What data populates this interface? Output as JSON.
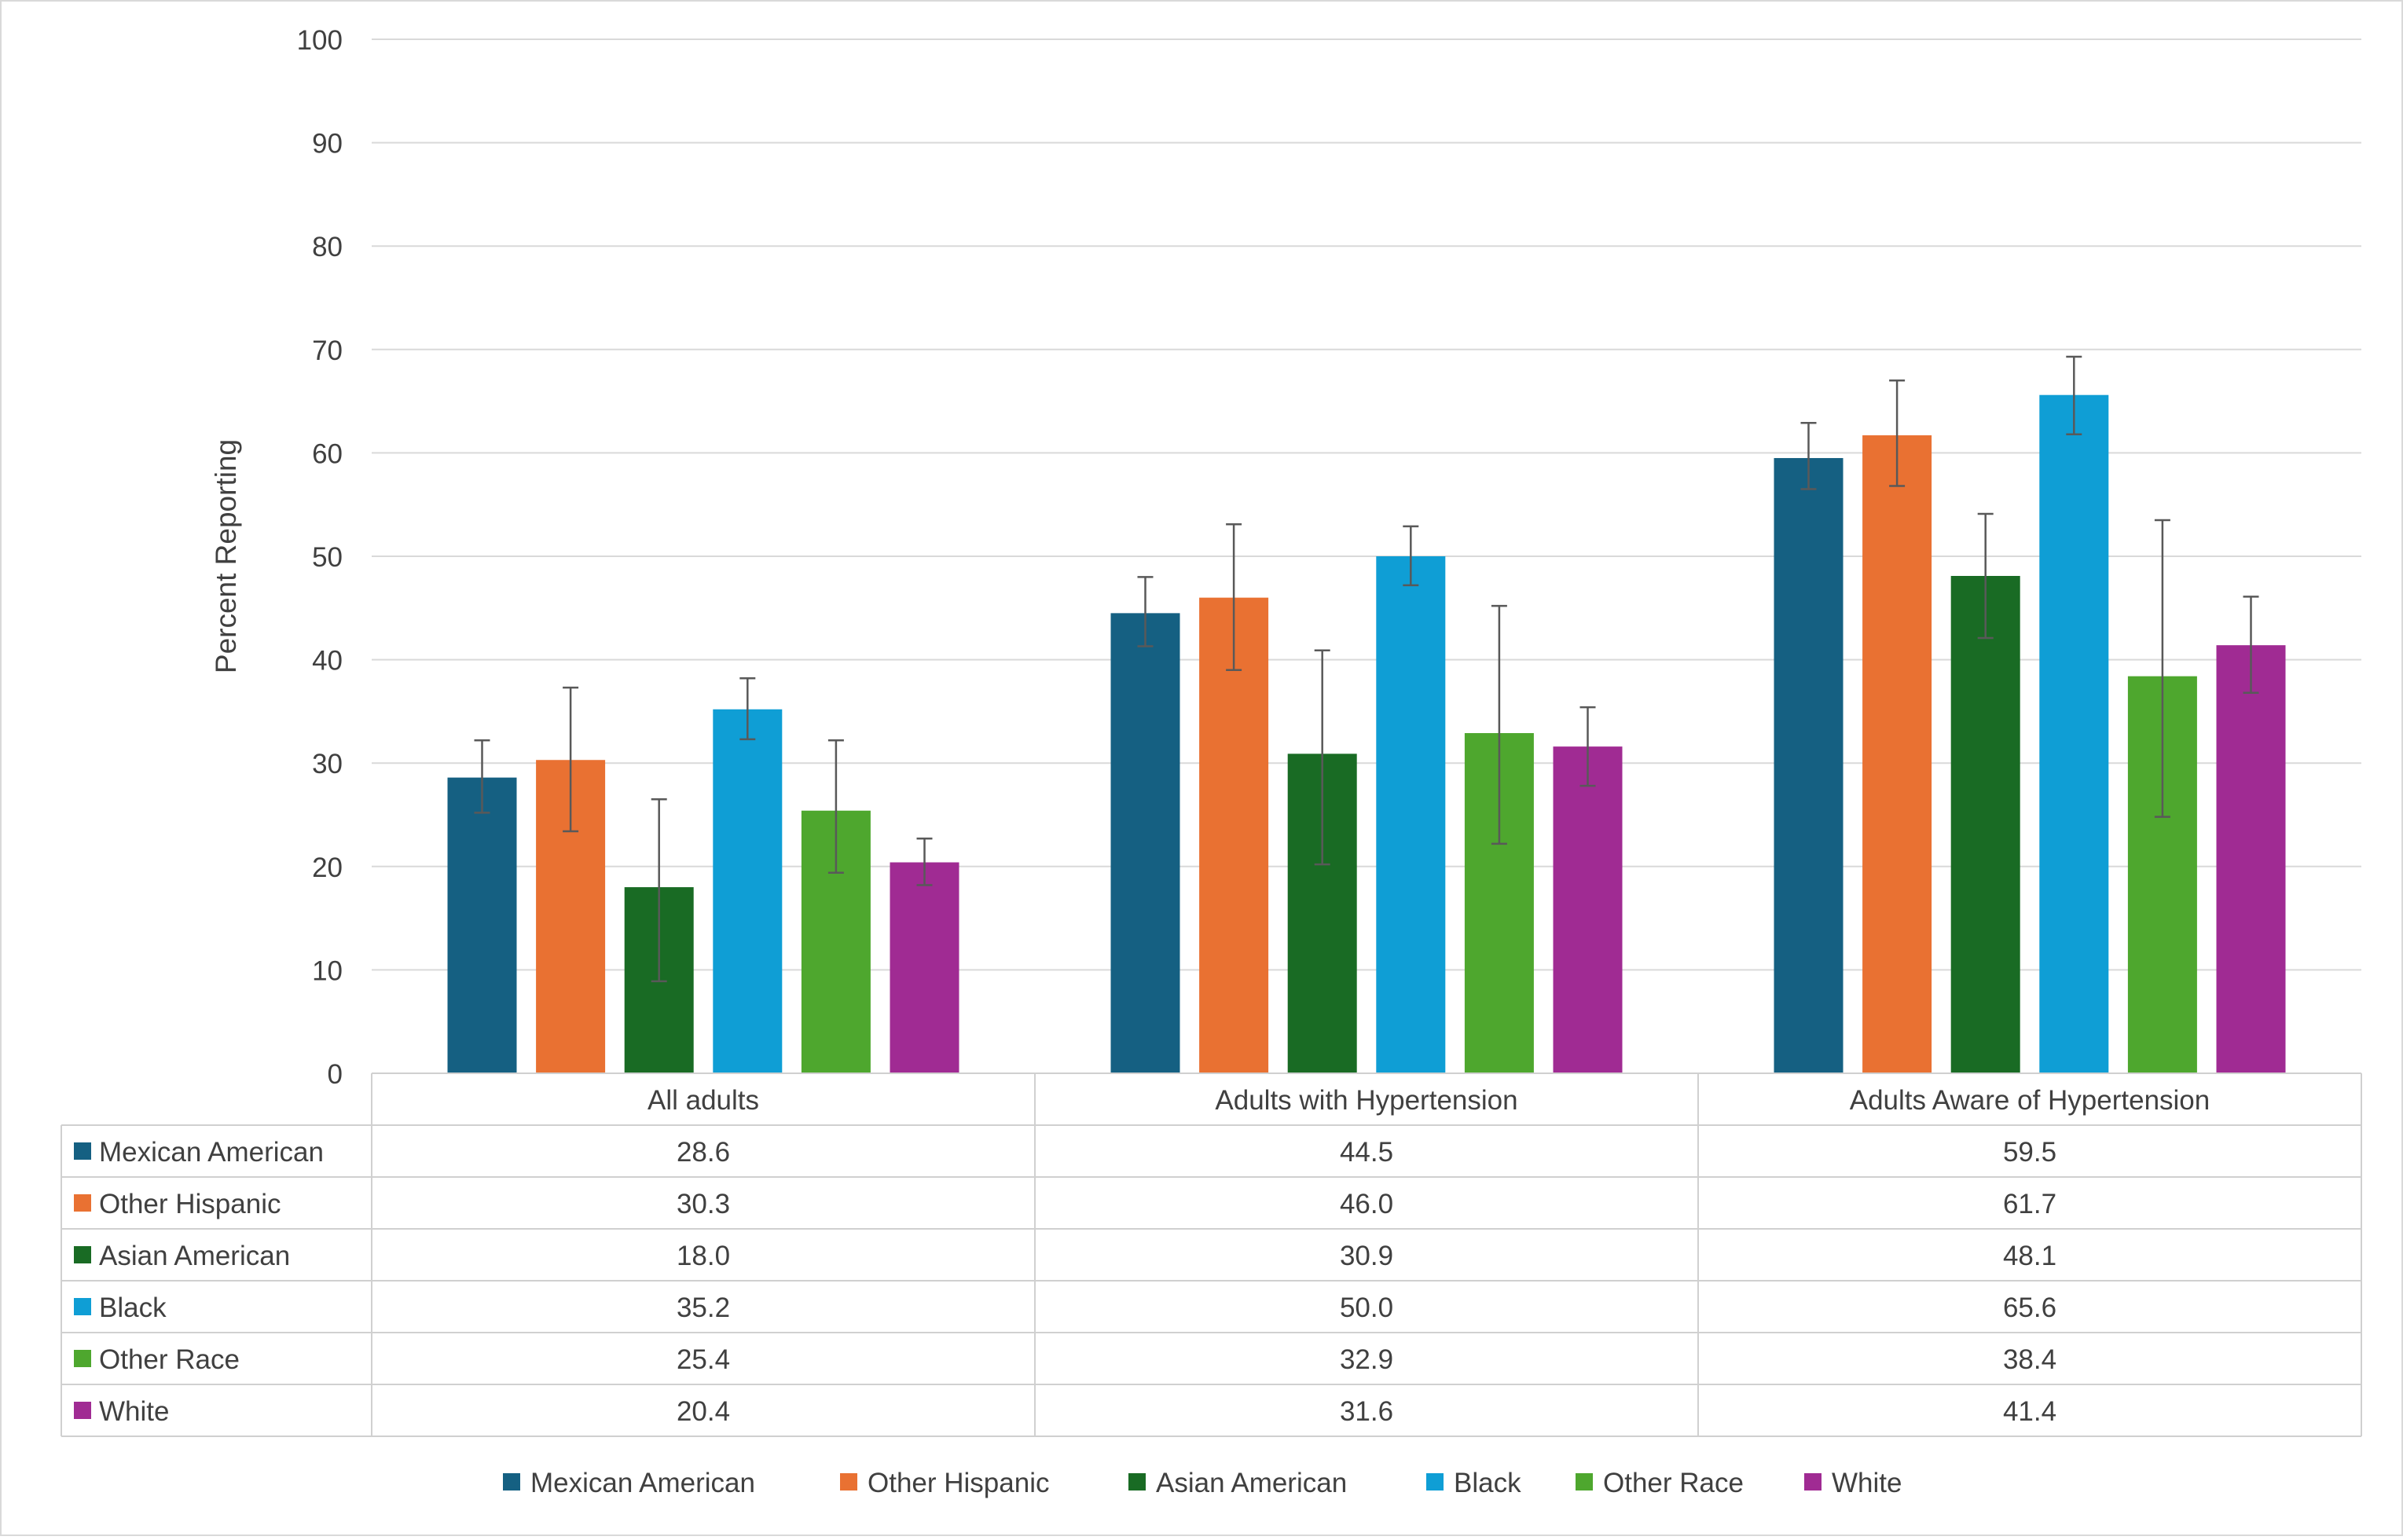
{
  "chart_data": {
    "type": "bar",
    "title": "",
    "xlabel": "",
    "ylabel": "Percent Reporting",
    "ylim": [
      0,
      100
    ],
    "yticks": [
      0,
      10,
      20,
      30,
      40,
      50,
      60,
      70,
      80,
      90,
      100
    ],
    "grid": true,
    "legend_placement": "bottom",
    "data_table": true,
    "categories": [
      "All adults",
      "Adults with Hypertension",
      "Adults Aware of Hypertension"
    ],
    "series": [
      {
        "name": "Mexican American",
        "color": "#156082",
        "values": [
          28.6,
          44.5,
          59.5
        ],
        "value_labels": [
          "28.6",
          "44.5",
          "59.5"
        ],
        "error_low": [
          25.2,
          41.3,
          56.5
        ],
        "error_high": [
          32.2,
          48.0,
          62.9
        ]
      },
      {
        "name": "Other Hispanic",
        "color": "#E97132",
        "values": [
          30.3,
          46.0,
          61.7
        ],
        "value_labels": [
          "30.3",
          "46.0",
          "61.7"
        ],
        "error_low": [
          23.4,
          39.0,
          56.8
        ],
        "error_high": [
          37.3,
          53.1,
          67.0
        ]
      },
      {
        "name": "Asian American",
        "color": "#196B24",
        "values": [
          18.0,
          30.9,
          48.1
        ],
        "value_labels": [
          "18.0",
          "30.9",
          "48.1"
        ],
        "error_low": [
          8.9,
          20.2,
          42.1
        ],
        "error_high": [
          26.5,
          40.9,
          54.1
        ]
      },
      {
        "name": "Black",
        "color": "#0F9ED5",
        "values": [
          35.2,
          50.0,
          65.6
        ],
        "value_labels": [
          "35.2",
          "50.0",
          "65.6"
        ],
        "error_low": [
          32.3,
          47.2,
          61.8
        ],
        "error_high": [
          38.2,
          52.9,
          69.3
        ]
      },
      {
        "name": "Other Race",
        "color": "#4EA72E",
        "values": [
          25.4,
          32.9,
          38.4
        ],
        "value_labels": [
          "25.4",
          "32.9",
          "38.4"
        ],
        "error_low": [
          19.4,
          22.2,
          24.8
        ],
        "error_high": [
          32.2,
          45.2,
          53.5
        ]
      },
      {
        "name": "White",
        "color": "#A02B93",
        "values": [
          20.4,
          31.6,
          41.4
        ],
        "value_labels": [
          "20.4",
          "31.6",
          "41.4"
        ],
        "error_low": [
          18.2,
          27.8,
          36.8
        ],
        "error_high": [
          22.7,
          35.4,
          46.1
        ]
      }
    ]
  }
}
